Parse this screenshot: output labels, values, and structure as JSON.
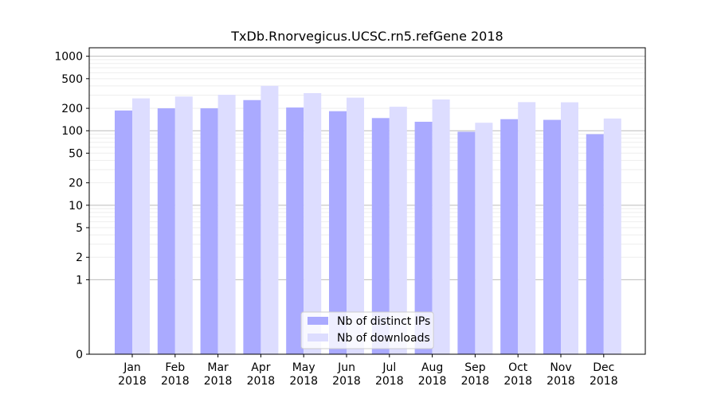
{
  "chart_data": {
    "type": "bar",
    "title": "TxDb.Rnorvegicus.UCSC.rn5.refGene 2018",
    "xlabel": "",
    "ylabel": "",
    "yscale": "symlog",
    "ylim": [
      0,
      1300
    ],
    "yticks": [
      0,
      1,
      2,
      5,
      10,
      20,
      50,
      100,
      200,
      500,
      1000
    ],
    "ytick_labels": [
      "0",
      "1",
      "2",
      "5",
      "10",
      "20",
      "50",
      "100",
      "200",
      "500",
      "1000"
    ],
    "categories": [
      "Jan",
      "Feb",
      "Mar",
      "Apr",
      "May",
      "Jun",
      "Jul",
      "Aug",
      "Sep",
      "Oct",
      "Nov",
      "Dec"
    ],
    "category_year": "2018",
    "series": [
      {
        "name": "Nb of distinct IPs",
        "color": "#aaaaff",
        "values": [
          187,
          200,
          200,
          258,
          205,
          183,
          148,
          132,
          97,
          143,
          140,
          90
        ]
      },
      {
        "name": "Nb of downloads",
        "color": "#ddddff",
        "values": [
          272,
          288,
          304,
          401,
          320,
          278,
          210,
          263,
          128,
          242,
          241,
          146
        ]
      }
    ],
    "grid": true,
    "legend": "lower-center"
  }
}
